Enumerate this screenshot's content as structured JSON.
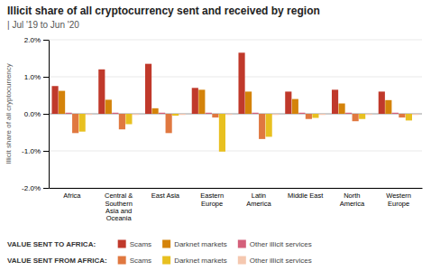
{
  "chart_data": {
    "type": "bar",
    "title": "Illicit share of all cryptocurrency sent and received by region",
    "subtitle": "| Jul '19 to Jun '20",
    "ylabel": "Illicit share of all cryptocurrency",
    "categories": [
      "Africa",
      "Central &\nSouthern\nAsia and\nOceania",
      "East Asia",
      "Eastern\nEurope",
      "Latin\nAmerica",
      "Middle East",
      "North\nAmerica",
      "Western\nEurope"
    ],
    "series": [
      {
        "name": "Scams",
        "group": "VALUE SENT TO AFRICA:",
        "color": "#c0392b",
        "values": [
          0.75,
          1.2,
          1.35,
          0.7,
          1.65,
          0.6,
          0.65,
          0.6
        ]
      },
      {
        "name": "Darknet markets",
        "group": "VALUE SENT TO AFRICA:",
        "color": "#d4830a",
        "values": [
          0.62,
          0.38,
          0.15,
          0.65,
          0.6,
          0.4,
          0.28,
          0.37
        ]
      },
      {
        "name": "Other illicit services",
        "group": "VALUE SENT TO AFRICA:",
        "color": "#d4607a",
        "values": [
          0.03,
          0.03,
          0.03,
          0.03,
          0.03,
          0.03,
          0.03,
          0.03
        ]
      },
      {
        "name": "Scams",
        "group": "VALUE SENT FROM AFRICA:",
        "color": "#e07840",
        "values": [
          -0.52,
          -0.42,
          -0.52,
          -0.1,
          -0.68,
          -0.14,
          -0.2,
          -0.1
        ]
      },
      {
        "name": "Darknet markets",
        "group": "VALUE SENT FROM AFRICA:",
        "color": "#e8c020",
        "values": [
          -0.48,
          -0.28,
          -0.05,
          -1.02,
          -0.62,
          -0.11,
          -0.14,
          -0.18
        ]
      },
      {
        "name": "Other illicit services",
        "group": "VALUE SENT FROM AFRICA:",
        "color": "#f5c8b0",
        "values": [
          -0.03,
          -0.03,
          -0.03,
          -0.03,
          -0.03,
          -0.03,
          -0.03,
          -0.03
        ]
      }
    ],
    "ylim": [
      -2.0,
      2.0
    ],
    "yticks": [
      {
        "value": -2.0,
        "label": "-2.0%"
      },
      {
        "value": -1.0,
        "label": "-1.0%"
      },
      {
        "value": 0.0,
        "label": "0.0%"
      },
      {
        "value": 1.0,
        "label": "1.0%"
      },
      {
        "value": 2.0,
        "label": "2.0%"
      }
    ],
    "grid": true,
    "legend": "bottom"
  }
}
